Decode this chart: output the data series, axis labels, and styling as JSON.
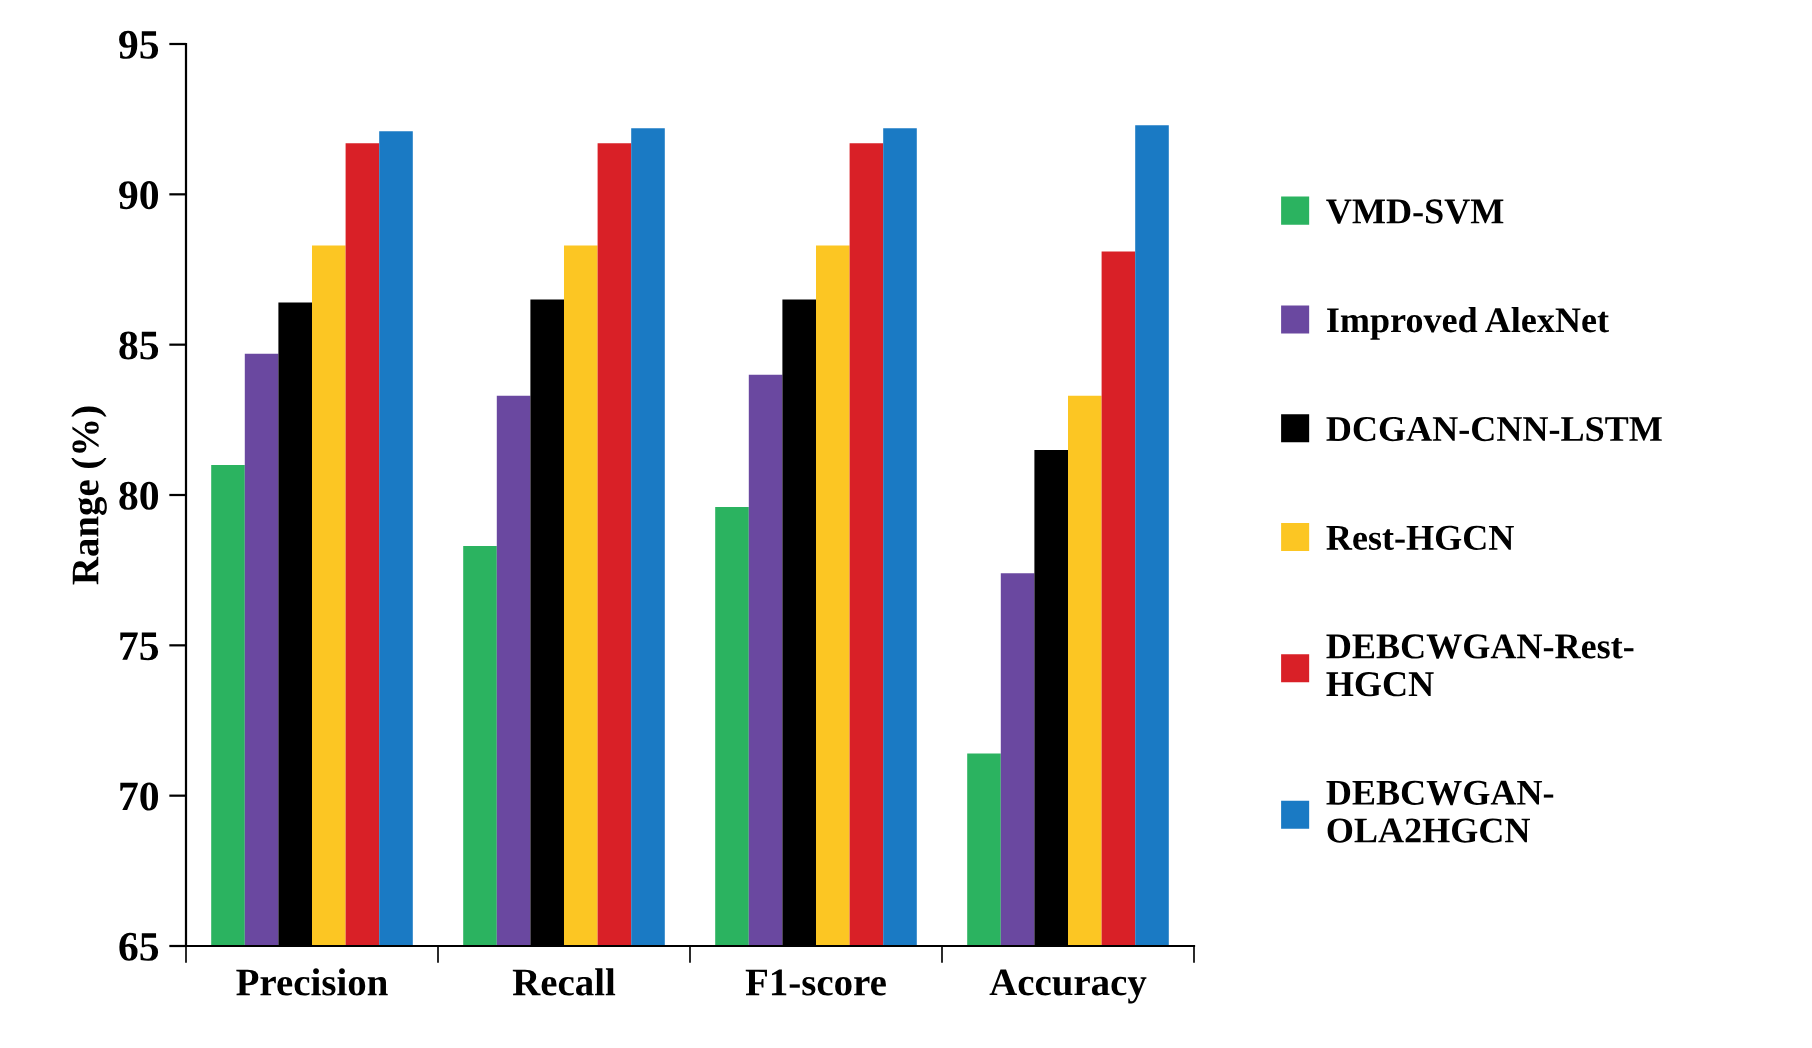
{
  "chart_data": {
    "type": "bar",
    "ylabel": "Range (%)",
    "categories": [
      "Precision",
      "Recall",
      "F1-score",
      "Accuracy"
    ],
    "ylim": [
      65,
      95
    ],
    "yticks": [
      65,
      70,
      75,
      80,
      85,
      90,
      95
    ],
    "grid": false,
    "legend": "right",
    "series": [
      {
        "name": "VMD-SVM",
        "color": "#2bb360",
        "values": [
          81.0,
          78.3,
          79.6,
          71.4
        ]
      },
      {
        "name": "Improved AlexNet",
        "color": "#6a48a0",
        "values": [
          84.7,
          83.3,
          84.0,
          77.4
        ]
      },
      {
        "name": "DCGAN-CNN-LSTM",
        "color": "#000000",
        "values": [
          86.4,
          86.5,
          86.5,
          81.5
        ]
      },
      {
        "name": "Rest-HGCN",
        "color": "#fcc623",
        "values": [
          88.3,
          88.3,
          88.3,
          83.3
        ]
      },
      {
        "name": "DEBCWGAN-Rest-HGCN",
        "color": "#d92027",
        "values": [
          91.7,
          91.7,
          91.7,
          88.1
        ]
      },
      {
        "name": "DEBCWGAN-OLA2HGCN",
        "color": "#1a7ac4",
        "values": [
          92.1,
          92.2,
          92.2,
          92.3
        ]
      }
    ]
  }
}
